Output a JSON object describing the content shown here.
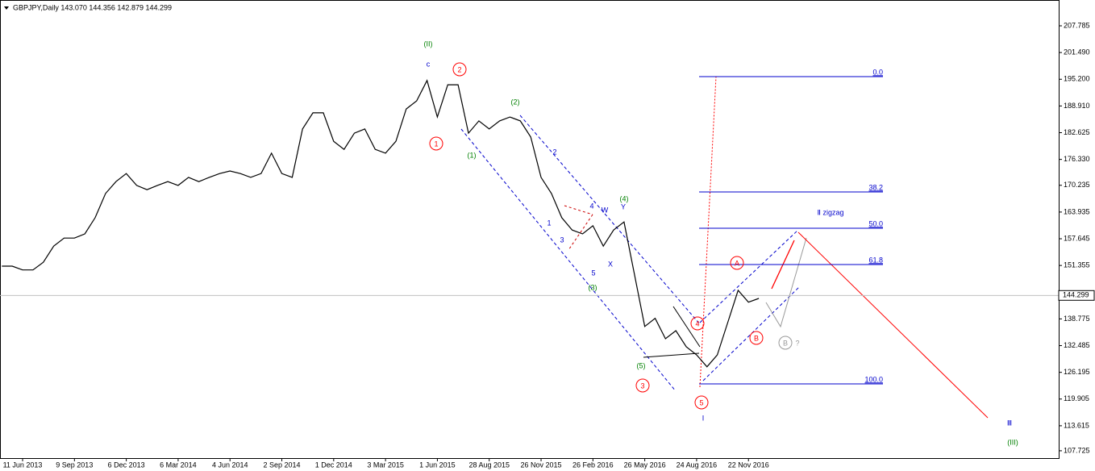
{
  "chart_data": {
    "type": "line",
    "title": "GBPJPY,Daily  143.070 144.356 142.879 144.299",
    "color": "#000000",
    "categories": [
      null,
      null,
      "11 Jun 2013",
      null,
      null,
      null,
      null,
      "9 Sep 2013",
      null,
      null,
      null,
      null,
      "6 Dec 2013",
      null,
      null,
      null,
      null,
      "6 Mar 2014",
      null,
      null,
      null,
      null,
      "4 Jun 2014",
      null,
      null,
      null,
      null,
      "2 Sep 2014",
      null,
      null,
      null,
      null,
      "1 Dec 2014",
      null,
      null,
      null,
      null,
      "3 Mar 2015",
      null,
      null,
      null,
      null,
      "1 Jun 2015",
      null,
      null,
      null,
      null,
      "28 Aug 2015",
      null,
      null,
      null,
      null,
      "26 Nov 2015",
      null,
      null,
      null,
      null,
      "26 Feb 2016",
      null,
      null,
      null,
      null,
      "26 May 2016",
      null,
      null,
      null,
      null,
      "24 Aug 2016",
      null,
      null,
      null,
      null,
      "22 Nov 2016",
      null
    ],
    "values": [
      151.2,
      151.2,
      150.3,
      150.3,
      152.1,
      155.9,
      157.8,
      157.8,
      158.8,
      162.6,
      168.3,
      171.1,
      173.0,
      170.2,
      169.2,
      170.2,
      171.1,
      170.2,
      172.1,
      171.1,
      172.1,
      173.0,
      173.6,
      173.0,
      172.1,
      173.0,
      177.8,
      173.0,
      172.1,
      183.5,
      187.3,
      187.3,
      180.6,
      178.7,
      182.5,
      183.5,
      178.7,
      177.8,
      180.6,
      188.2,
      190.1,
      194.9,
      186.3,
      193.9,
      193.9,
      182.5,
      185.4,
      183.5,
      185.4,
      186.3,
      185.4,
      181.6,
      172.1,
      168.3,
      162.6,
      159.7,
      158.8,
      160.7,
      155.9,
      159.7,
      161.6,
      149.3,
      137.0,
      138.9,
      134.1,
      136.0,
      132.2,
      130.3,
      127.5,
      130.3,
      137.9,
      145.5,
      142.7,
      143.6
    ],
    "ylim": [
      106.0,
      213.86
    ],
    "yticks": [
      207.785,
      {
        "value": 201.49,
        "label": "201.490"
      },
      {
        "value": 195.2,
        "label": "195.200"
      },
      {
        "value": 188.91,
        "label": "188.910"
      },
      182.625,
      {
        "value": 176.33,
        "label": "176.330"
      },
      170.235,
      163.935,
      157.645,
      151.355,
      138.775,
      132.485,
      126.195,
      119.905,
      113.615,
      107.725
    ],
    "last_price": 144.299,
    "fib_levels": [
      {
        "label": "0.0",
        "value": 195.82
      },
      {
        "label": "38.2",
        "value": 168.67
      },
      {
        "label": "50.0",
        "value": 160.13
      },
      {
        "label": "61.8",
        "value": 151.58
      },
      {
        "label": "100.0",
        "value": 123.48
      }
    ],
    "annotations": [
      "(II)",
      "c",
      "2",
      "1",
      "(2)",
      "(1)",
      "2",
      "1",
      "3",
      "4",
      "W",
      "Y",
      "(4)",
      "5",
      "X",
      "(3)",
      "(5)",
      "3",
      "4",
      "5",
      "I",
      "A",
      "B",
      "B",
      "?",
      "Ⅱ zigzag",
      "Ⅲ",
      "(III)"
    ]
  }
}
